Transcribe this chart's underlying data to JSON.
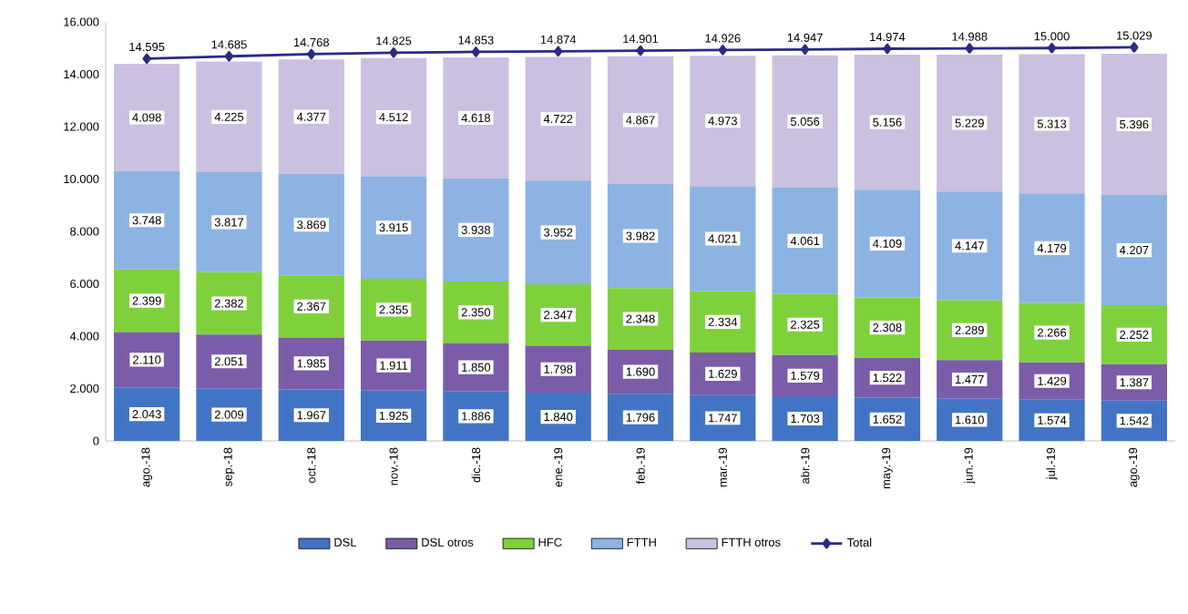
{
  "chart_data": {
    "type": "bar",
    "stacked": true,
    "legend": "bottom",
    "marker": "diamond",
    "grid": false,
    "categories": [
      "ago.-18",
      "sep.-18",
      "oct.-18",
      "nov.-18",
      "dic.-18",
      "ene.-19",
      "feb.-19",
      "mar.-19",
      "abr.-19",
      "may.-19",
      "jun.-19",
      "jul.-19",
      "ago.-19"
    ],
    "ylim": [
      0,
      16000
    ],
    "yticks": [
      {
        "value": 0,
        "label": "0"
      },
      {
        "value": 2000,
        "label": "2.000"
      },
      {
        "value": 4000,
        "label": "4.000"
      },
      {
        "value": 6000,
        "label": "6.000"
      },
      {
        "value": 8000,
        "label": "8.000"
      },
      {
        "value": 10000,
        "label": "10.000"
      },
      {
        "value": 12000,
        "label": "12.000"
      },
      {
        "value": 14000,
        "label": "14.000"
      },
      {
        "value": 16000,
        "label": "16.000"
      }
    ],
    "series": [
      {
        "name": "DSL",
        "color": "#4274c6",
        "values": [
          2043,
          2009,
          1967,
          1925,
          1886,
          1840,
          1796,
          1747,
          1703,
          1652,
          1610,
          1574,
          1542
        ],
        "value_labels": [
          "2.043",
          "2.009",
          "1.967",
          "1.925",
          "1.886",
          "1.840",
          "1.796",
          "1.747",
          "1.703",
          "1.652",
          "1.610",
          "1.574",
          "1.542"
        ]
      },
      {
        "name": "DSL otros",
        "color": "#7a5ca8",
        "values": [
          2110,
          2051,
          1985,
          1911,
          1850,
          1798,
          1690,
          1629,
          1579,
          1522,
          1477,
          1429,
          1387
        ],
        "value_labels": [
          "2.110",
          "2.051",
          "1.985",
          "1.911",
          "1.850",
          "1.798",
          "1.690",
          "1.629",
          "1.579",
          "1.522",
          "1.477",
          "1.429",
          "1.387"
        ]
      },
      {
        "name": "HFC",
        "color": "#7fd13b",
        "values": [
          2399,
          2382,
          2367,
          2355,
          2350,
          2347,
          2348,
          2334,
          2325,
          2308,
          2289,
          2266,
          2252
        ],
        "value_labels": [
          "2.399",
          "2.382",
          "2.367",
          "2.355",
          "2.350",
          "2.347",
          "2.348",
          "2.334",
          "2.325",
          "2.308",
          "2.289",
          "2.266",
          "2.252"
        ]
      },
      {
        "name": "FTTH",
        "color": "#8db3e2",
        "values": [
          3748,
          3817,
          3869,
          3915,
          3938,
          3952,
          3982,
          4021,
          4061,
          4109,
          4147,
          4179,
          4207
        ],
        "value_labels": [
          "3.748",
          "3.817",
          "3.869",
          "3.915",
          "3.938",
          "3.952",
          "3.982",
          "4.021",
          "4.061",
          "4.109",
          "4.147",
          "4.179",
          "4.207"
        ]
      },
      {
        "name": "FTTH otros",
        "color": "#ccc0e0",
        "values": [
          4098,
          4225,
          4377,
          4512,
          4618,
          4722,
          4867,
          4973,
          5056,
          5156,
          5229,
          5313,
          5396
        ],
        "value_labels": [
          "4.098",
          "4.225",
          "4.377",
          "4.512",
          "4.618",
          "4.722",
          "4.867",
          "4.973",
          "5.056",
          "5.156",
          "5.229",
          "5.313",
          "5.396"
        ]
      },
      {
        "name": "Total",
        "type": "line",
        "color": "#2b2a86",
        "values": [
          14595,
          14685,
          14768,
          14825,
          14853,
          14874,
          14901,
          14926,
          14947,
          14974,
          14988,
          15000,
          15029
        ],
        "value_labels": [
          "14.595",
          "14.685",
          "14.768",
          "14.825",
          "14.853",
          "14.874",
          "14.901",
          "14.926",
          "14.947",
          "14.974",
          "14.988",
          "15.000",
          "15.029"
        ]
      }
    ]
  }
}
